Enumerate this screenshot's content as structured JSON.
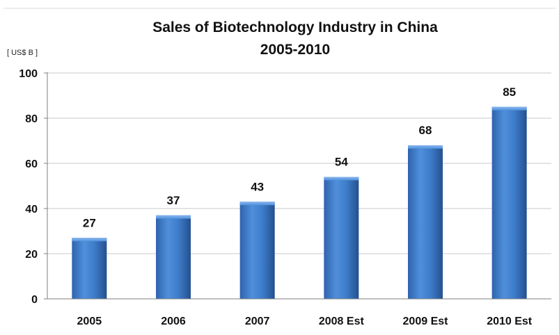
{
  "chart_data": {
    "type": "bar",
    "title": "Sales of Biotechnology Industry in China",
    "subtitle": "2005-2010",
    "ylabel": "[ US$ B ]",
    "xlabel": "",
    "categories": [
      "2005",
      "2006",
      "2007",
      "2008 Est",
      "2009 Est",
      "2010 Est"
    ],
    "values": [
      27,
      37,
      43,
      54,
      68,
      85
    ],
    "data_labels": [
      "27",
      "37",
      "43",
      "54",
      "68",
      "85"
    ],
    "ylim": [
      0,
      100
    ],
    "yticks": [
      "0",
      "20",
      "40",
      "60",
      "80",
      "100"
    ],
    "grid": true,
    "legend": "none",
    "bar_color": "#3a78c8"
  }
}
